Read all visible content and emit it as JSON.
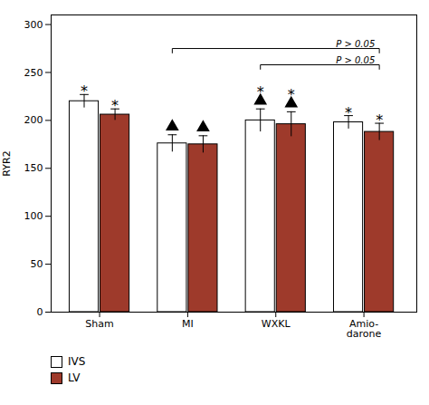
{
  "chart_data": {
    "type": "bar",
    "categories": [
      "Sham",
      "MI",
      "WXKL",
      "Amio-\ndarone"
    ],
    "series": [
      {
        "name": "IVS",
        "color": "#ffffff",
        "values": [
          220,
          176,
          200,
          198
        ],
        "errors": [
          7,
          9,
          12,
          7
        ]
      },
      {
        "name": "LV",
        "color": "#9e3a2b",
        "values": [
          206,
          175,
          196,
          188
        ],
        "errors": [
          6,
          9,
          13,
          9
        ]
      }
    ],
    "ylabel": "RYR2",
    "ylim": [
      0,
      310
    ],
    "yticks": [
      0,
      50,
      100,
      150,
      200,
      250,
      300
    ],
    "grid": false,
    "legend": "bottom",
    "annotations": [
      {
        "text": "*",
        "categories": [
          "Sham",
          "WXKL",
          "Amio-\ndarone"
        ]
      },
      {
        "marker": "triangle",
        "categories": [
          "MI",
          "WXKL"
        ]
      },
      {
        "text": "P > 0.05",
        "y": 258,
        "from": "WXKL",
        "to": "Amio-\ndarone"
      },
      {
        "text": "P > 0.05",
        "y": 275,
        "from": "MI",
        "to": "Amio-\ndarone"
      }
    ]
  }
}
